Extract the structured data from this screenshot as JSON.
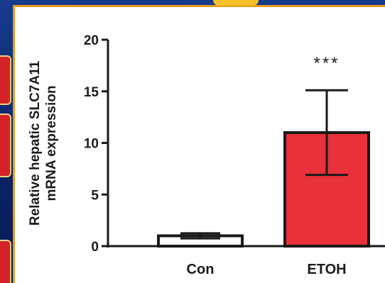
{
  "colors": {
    "background": "#0f2a6e",
    "frame_border": "#e39b1f",
    "panel": "#ffffff",
    "side_tab": "#d42228",
    "bar_con": "#ffffff",
    "bar_etoh": "#e8313a",
    "axis": "#1a1a1a"
  },
  "chart_data": {
    "type": "bar",
    "title": "",
    "ylabel_line1": "Relative hepatic SLC7A11",
    "ylabel_line2": "mRNA expression",
    "xlabel": "",
    "categories": [
      "Con",
      "ETOH"
    ],
    "values": [
      1.0,
      11.0
    ],
    "error_plus": [
      0.25,
      4.1
    ],
    "error_minus": [
      0.25,
      4.1
    ],
    "bar_colors": [
      "#ffffff",
      "#e8313a"
    ],
    "significance": [
      "",
      "***"
    ],
    "ylim": [
      0,
      20
    ],
    "yticks": [
      0,
      5,
      10,
      15,
      20
    ],
    "grid": false,
    "legend": "none"
  }
}
